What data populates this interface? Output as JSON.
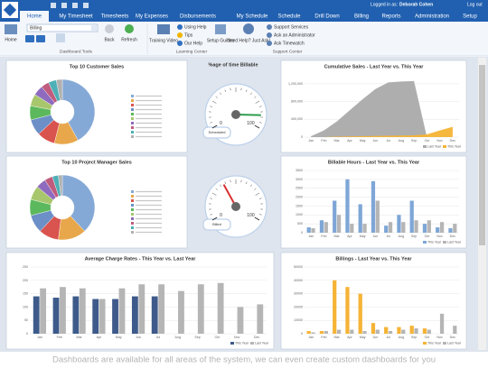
{
  "header": {
    "logged_in": "Logged in as:",
    "user": "Deborah Cohen",
    "logout": "Log out"
  },
  "nav": [
    "Home",
    "My Timesheet",
    "Timesheets",
    "My Expenses",
    "Disbursements",
    "My Schedule",
    "Schedule",
    "Drill Down",
    "Billing",
    "Reports",
    "Administration",
    "Setup"
  ],
  "ribbon": {
    "dropdown": "Billing",
    "home": "Home",
    "dashboard_tools": "Dashboard Tools",
    "back": "Back",
    "refresh": "Refresh",
    "training_video": "Training Video",
    "using_help": "Using Help",
    "tips": "Tips",
    "our_help": "Our Help",
    "learning_center": "Learning Center",
    "setup_guides": "Setup Guides",
    "need_help": "Need Help? Just Ask!",
    "support_services": "Support Services",
    "ask_admin": "Ask an Administrator",
    "ask_timewatch": "Ask Timewatch",
    "support_center": "Support Center"
  },
  "charts": [
    {
      "type": "pie",
      "title": "Top 10 Customer Sales",
      "values": [
        42,
        12,
        9,
        8,
        7,
        6,
        5,
        4,
        4,
        3
      ],
      "colors": [
        "#85a9d6",
        "#e8a74b",
        "#d9534f",
        "#6c8fc7",
        "#5cb85c",
        "#a8c66c",
        "#8e6bbf",
        "#c05c7e",
        "#4cb0b6",
        "#b0b0b0"
      ]
    },
    {
      "type": "gauge",
      "title": "%age of time Billable",
      "label": "Scheduled",
      "value": 88,
      "ylim": [
        0,
        100
      ],
      "yticks": [
        0,
        100
      ],
      "color": "#2e9e4f"
    },
    {
      "type": "area",
      "title": "Cumulative Sales - Last Year vs. This Year",
      "categories": [
        "Jan",
        "Feb",
        "Mar",
        "Apr",
        "May",
        "Jun",
        "Jul",
        "Aug",
        "Sep",
        "Oct",
        "Nov",
        "Dec"
      ],
      "series": [
        {
          "name": "Last Year",
          "color": "#aaaaaa",
          "values": [
            20000,
            150000,
            350000,
            600000,
            850000,
            1080000,
            1230000,
            1250000,
            1260000,
            0,
            0,
            0
          ]
        },
        {
          "name": "This Year",
          "color": "#f5b335",
          "values": [
            0,
            0,
            10000,
            15000,
            20000,
            25000,
            30000,
            35000,
            40000,
            60000,
            150000,
            230000
          ]
        }
      ],
      "ylim": [
        0,
        1400000
      ],
      "yticks": [
        0,
        {
          "value": 400000,
          "label": "400,000"
        },
        {
          "value": 800000,
          "label": "800,000"
        },
        {
          "value": 1200000,
          "label": "1,200,000"
        }
      ]
    },
    {
      "type": "pie",
      "title": "Top 10 Project Manager Sales",
      "values": [
        38,
        14,
        10,
        9,
        8,
        7,
        5,
        4,
        3,
        2
      ],
      "colors": [
        "#85a9d6",
        "#e8a74b",
        "#d9534f",
        "#6c8fc7",
        "#5cb85c",
        "#a8c66c",
        "#8e6bbf",
        "#c05c7e",
        "#4cb0b6",
        "#b0b0b0"
      ]
    },
    {
      "type": "gauge",
      "label": "Billed",
      "value": 38,
      "ylim": [
        0,
        100
      ],
      "yticks": [
        0,
        100
      ],
      "color": "#d93030"
    },
    {
      "type": "bar",
      "title": "Billable Hours - Last Year vs. This Year",
      "categories": [
        "Jan",
        "Feb",
        "Mar",
        "Apr",
        "May",
        "Jun",
        "Jul",
        "Aug",
        "Sep",
        "Oct",
        "Nov",
        "Dec"
      ],
      "series": [
        {
          "name": "This Year",
          "color": "#7ea6d6",
          "values": [
            300,
            700,
            1800,
            3000,
            1600,
            2900,
            400,
            1000,
            1800,
            500,
            300,
            250
          ]
        },
        {
          "name": "Last Year",
          "color": "#b5b5b5",
          "values": [
            250,
            600,
            1000,
            500,
            500,
            1800,
            600,
            600,
            700,
            700,
            600,
            500
          ]
        }
      ],
      "ylim": [
        0,
        3500
      ],
      "yticks": [
        0,
        500,
        1000,
        1500,
        2000,
        2500,
        3000,
        3500
      ]
    },
    {
      "type": "bar",
      "title": "Average Charge Rates - This Year vs. Last Year",
      "categories": [
        "Jan",
        "Feb",
        "Mar",
        "Apr",
        "May",
        "Jun",
        "Jul",
        "Aug",
        "Sep",
        "Oct",
        "Nov",
        "Dec"
      ],
      "series": [
        {
          "name": "This Year",
          "color": "#3d5a8a",
          "values": [
            140,
            135,
            140,
            130,
            130,
            140,
            140,
            null,
            null,
            null,
            null,
            null
          ]
        },
        {
          "name": "Last Year",
          "color": "#b5b5b5",
          "values": [
            170,
            175,
            170,
            130,
            170,
            185,
            185,
            160,
            185,
            190,
            100,
            110
          ]
        }
      ],
      "ylim": [
        0,
        250
      ],
      "yticks": [
        0,
        50,
        100,
        150,
        200,
        250
      ]
    },
    {
      "type": "bar",
      "title": "Billings - Last Year vs. This Year",
      "categories": [
        "Jan",
        "Feb",
        "Mar",
        "Apr",
        "May",
        "Jun",
        "Jul",
        "Aug",
        "Sep",
        "Oct",
        "Nov",
        "Dec"
      ],
      "series": [
        {
          "name": "This Year",
          "color": "#f5b335",
          "values": [
            2000,
            2000,
            40000,
            35000,
            30000,
            8000,
            5000,
            5000,
            6000,
            4000,
            null,
            null
          ]
        },
        {
          "name": "Last Year",
          "color": "#b5b5b5",
          "values": [
            1000,
            2000,
            3000,
            3000,
            2000,
            3000,
            2000,
            3000,
            4000,
            3000,
            15000,
            6000
          ]
        }
      ],
      "ylim": [
        0,
        50000
      ],
      "yticks": [
        0,
        10000,
        20000,
        30000,
        40000,
        50000
      ]
    }
  ],
  "caption": "Dashboards are available for all areas of the system, we can even create custom dashboards for you"
}
